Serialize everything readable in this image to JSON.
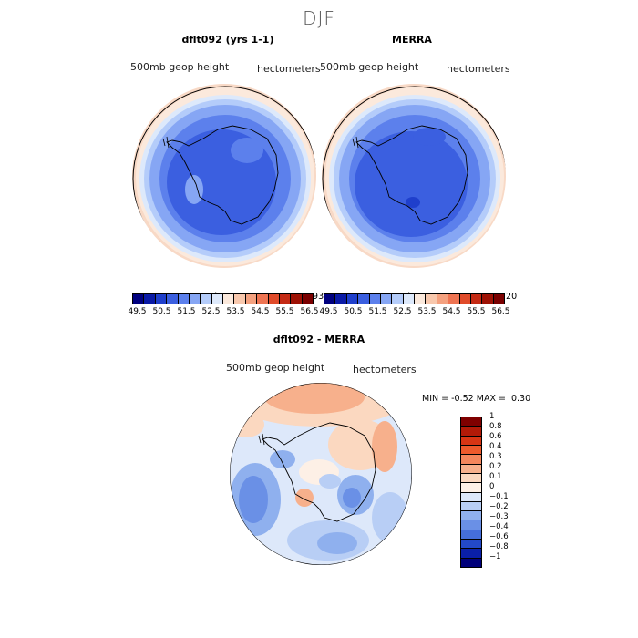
{
  "figure": {
    "season": "DJF"
  },
  "panels": {
    "model": {
      "title": "dflt092 (yrs 1-1)",
      "variable": "500mb geop height",
      "units": "hectometers",
      "stats": {
        "mean": "51.55",
        "min": "50.46",
        "max": "53.93"
      }
    },
    "obs": {
      "title": "MERRA",
      "variable": "500mb geop height",
      "units": "hectometers",
      "stats": {
        "mean": "51.65",
        "min": "50.41",
        "max": "54.20"
      }
    },
    "diff": {
      "title": "dflt092 - MERRA",
      "variable": "500mb geop height",
      "units": "hectometers",
      "stats": {
        "min": "-0.52",
        "max": "0.30"
      }
    }
  },
  "stat_labels": {
    "mean": "MEAN=",
    "min": "Min=",
    "max": "Max=",
    "dmin": "MIN =",
    "dmax": "MAX ="
  },
  "colorbar_main": {
    "colors": [
      "#00007f",
      "#0a1aa6",
      "#1f3fcc",
      "#3b5fe0",
      "#5c80ec",
      "#86a6f4",
      "#b4ccfa",
      "#dde9fb",
      "#fbe9dc",
      "#f8c8ad",
      "#f4a17f",
      "#ee7452",
      "#e04b2a",
      "#c42a14",
      "#9e1205",
      "#7a0000"
    ],
    "labels": [
      "49.5",
      "50.5",
      "51.5",
      "52.5",
      "53.5",
      "54.5",
      "55.5",
      "56.5"
    ]
  },
  "colorbar_diff": {
    "colors": [
      "#7f0000",
      "#b21a08",
      "#d83514",
      "#ee5a2c",
      "#f4865c",
      "#f7b08c",
      "#fbd8c0",
      "#fdf0e6",
      "#dde8fa",
      "#b8cef5",
      "#8fb0ee",
      "#6a90e6",
      "#456edb",
      "#2349c8",
      "#0a1fa8",
      "#00007a"
    ],
    "labels": [
      "1",
      "0.8",
      "0.6",
      "0.4",
      "0.3",
      "0.2",
      "0.1",
      "0",
      "−0.1",
      "−0.2",
      "−0.3",
      "−0.4",
      "−0.6",
      "−0.8",
      "−1"
    ]
  }
}
